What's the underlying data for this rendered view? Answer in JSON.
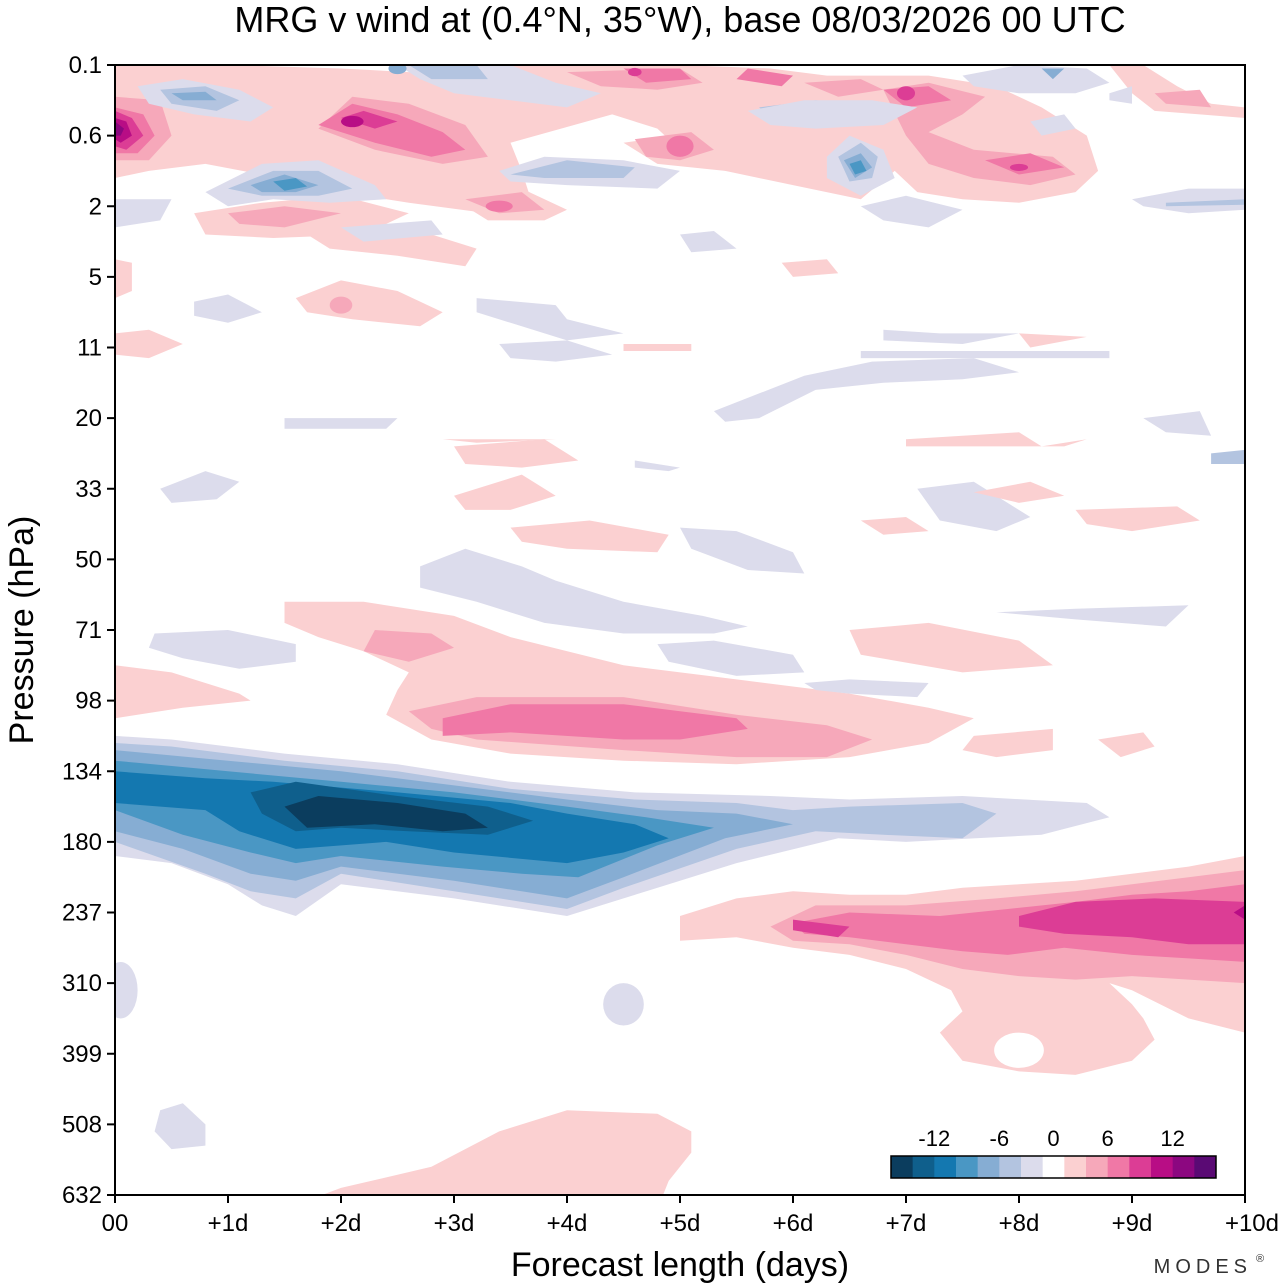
{
  "chart_data": {
    "type": "heatmap",
    "title": "MRG v wind at (0.4°N, 35°W),  base 08/03/2026  00 UTC",
    "xlabel": "Forecast length (days)",
    "ylabel": "Pressure (hPa)",
    "x_ticks": [
      "00",
      "+1d",
      "+2d",
      "+3d",
      "+4d",
      "+5d",
      "+6d",
      "+7d",
      "+8d",
      "+9d",
      "+10d"
    ],
    "xlim": [
      0,
      10
    ],
    "y_ticks": [
      "0.1",
      "0.6",
      "2",
      "5",
      "11",
      "20",
      "33",
      "50",
      "71",
      "98",
      "134",
      "180",
      "237",
      "310",
      "399",
      "508",
      "632"
    ],
    "y_scale": "level index (pressure decreasing upward)",
    "ylim": [
      0,
      16
    ],
    "colorbar": {
      "tick_labels": [
        "-12",
        "-6",
        "0",
        "6",
        "12"
      ],
      "levels": [
        -14,
        -12,
        -10,
        -8,
        -6,
        -4,
        -2,
        2,
        4,
        6,
        8,
        10,
        12,
        14
      ],
      "colors": [
        "#0b3d5e",
        "#0f5f8c",
        "#1478b0",
        "#4a97c4",
        "#86add3",
        "#b3c4e0",
        "#dcdcec",
        "#ffffff",
        "#fbd0d1",
        "#f6a8ba",
        "#f078a6",
        "#dc3d95",
        "#b80d85",
        "#8c0780",
        "#5a0a74"
      ],
      "placement": "bottom-right inside plot"
    },
    "features": [
      {
        "name": "negative band near tropopause",
        "x_range": [
          0,
          6.5
        ],
        "level_range": [
          10,
          12.4
        ],
        "min_value": -14
      },
      {
        "name": "positive band above tropopause",
        "x_range": [
          2.5,
          8
        ],
        "level_range": [
          9,
          10
        ],
        "max_value": 8
      },
      {
        "name": "positive band upper troposphere",
        "x_range": [
          5,
          10
        ],
        "level_range": [
          12,
          13
        ],
        "max_value": 10
      },
      {
        "name": "positive cell lower troposphere",
        "x_range": [
          7.5,
          9
        ],
        "level_range": [
          13,
          15
        ],
        "max_value": 4
      },
      {
        "name": "positive cell near surface",
        "x_range": [
          1.5,
          5
        ],
        "level_range": [
          15,
          16
        ],
        "max_value": 4
      },
      {
        "name": "strong positive cell upper stratosphere",
        "x_range": [
          0,
          0.5
        ],
        "level_range": [
          0.5,
          1.5
        ],
        "max_value": 14
      },
      {
        "name": "alternating cells upper stratosphere",
        "x_range": [
          0,
          10
        ],
        "level_range": [
          0,
          3
        ],
        "min_value": -12,
        "max_value": 12
      }
    ]
  },
  "branding": {
    "logo": "MODES",
    "mark": "®"
  }
}
